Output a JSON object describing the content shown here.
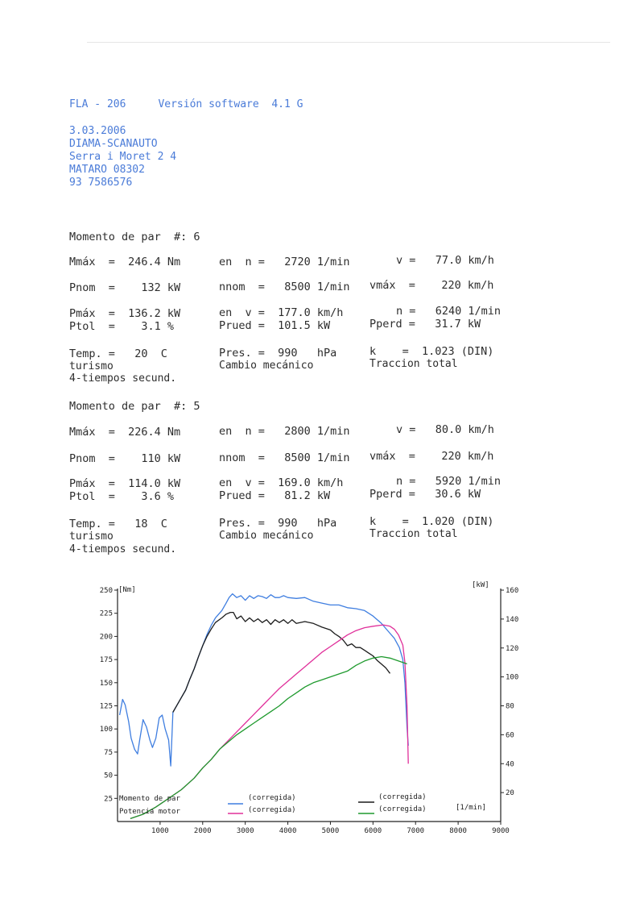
{
  "header": {
    "device": "FLA - 206",
    "software": "Versión software  4.1 G",
    "date": "3.03.2006",
    "company": "DIAMA-SCANAUTO",
    "address": "Serra i Moret 2 4",
    "city": "MATARO 08302",
    "phone": "93 7586576"
  },
  "tests": [
    {
      "title": "Momento de par  #: 6",
      "mmax": "Mmáx  =  246.4 Nm",
      "mmax_n": "en  n =   2720 1/min",
      "mmax_v": "v =   77.0 km/h",
      "pnom": "Pnom  =    132 kW",
      "nnom": "nnom  =   8500 1/min",
      "vmax": "vmáx  =    220 km/h",
      "pmax": "Pmáx  =  136.2 kW",
      "pmax_v": "en  v =  177.0 km/h",
      "pmax_n": "n =   6240 1/min",
      "ptol": "Ptol  =    3.1 %",
      "prued": "Prued =  101.5 kW",
      "pperd": "Pperd =   31.7 kW",
      "temp": "Temp. =   20  C",
      "pres": "Pres. =  990   hPa",
      "k": "k    =  1.023 (DIN)",
      "type": "turismo",
      "gearbox": "Cambio mecánico",
      "traction": "Traccion total",
      "engine": "4-tiempos secund."
    },
    {
      "title": "Momento de par  #: 5",
      "mmax": "Mmáx  =  226.4 Nm",
      "mmax_n": "en  n =   2800 1/min",
      "mmax_v": "v =   80.0 km/h",
      "pnom": "Pnom  =    110 kW",
      "nnom": "nnom  =   8500 1/min",
      "vmax": "vmáx  =    220 km/h",
      "pmax": "Pmáx  =  114.0 kW",
      "pmax_v": "en  v =  169.0 km/h",
      "pmax_n": "n =   5920 1/min",
      "ptol": "Ptol  =    3.6 %",
      "prued": "Prued =   81.2 kW",
      "pperd": "Pperd =   30.6 kW",
      "temp": "Temp. =   18  C",
      "pres": "Pres. =  990   hPa",
      "k": "k    =  1.020 (DIN)",
      "type": "turismo",
      "gearbox": "Cambio mecánico",
      "traction": "Traccion total",
      "engine": "4-tiempos secund."
    }
  ],
  "chart_data": {
    "type": "line",
    "xlabel": "[1/min]",
    "ylabel_left": "[Nm]",
    "ylabel_right": "[kW]",
    "xlim": [
      0,
      9000
    ],
    "ylim_left": [
      0,
      250
    ],
    "ylim_right": [
      0,
      160
    ],
    "x_ticks": [
      "1000",
      "2000",
      "3000",
      "4000",
      "5000",
      "6000",
      "7000",
      "8000",
      "9000"
    ],
    "y_left_ticks": [
      "25",
      "50",
      "75",
      "100",
      "125",
      "150",
      "175",
      "200",
      "225",
      "250"
    ],
    "y_right_ticks": [
      "20",
      "40",
      "60",
      "80",
      "100",
      "120",
      "140",
      "160"
    ],
    "legend": {
      "torque_label": "Momento de par",
      "power_label": "Potencia motor",
      "corrected": "(corregida)"
    },
    "series": [
      {
        "color": "#3f7ee0",
        "axis": "left",
        "points": [
          [
            50,
            115
          ],
          [
            120,
            132
          ],
          [
            180,
            126
          ],
          [
            260,
            108
          ],
          [
            320,
            90
          ],
          [
            400,
            78
          ],
          [
            470,
            73
          ],
          [
            520,
            88
          ],
          [
            600,
            110
          ],
          [
            680,
            102
          ],
          [
            760,
            88
          ],
          [
            820,
            80
          ],
          [
            900,
            90
          ],
          [
            980,
            112
          ],
          [
            1050,
            115
          ],
          [
            1120,
            100
          ],
          [
            1200,
            88
          ],
          [
            1250,
            60
          ],
          [
            1300,
            118
          ],
          [
            1400,
            126
          ],
          [
            1500,
            134
          ],
          [
            1600,
            142
          ],
          [
            1700,
            154
          ],
          [
            1800,
            165
          ],
          [
            1900,
            178
          ],
          [
            2000,
            190
          ],
          [
            2100,
            202
          ],
          [
            2200,
            212
          ],
          [
            2300,
            220
          ],
          [
            2450,
            228
          ],
          [
            2550,
            236
          ],
          [
            2620,
            242
          ],
          [
            2700,
            246
          ],
          [
            2800,
            242
          ],
          [
            2900,
            244
          ],
          [
            3000,
            239
          ],
          [
            3100,
            244
          ],
          [
            3200,
            241
          ],
          [
            3300,
            244
          ],
          [
            3400,
            243
          ],
          [
            3500,
            241
          ],
          [
            3600,
            245
          ],
          [
            3700,
            242
          ],
          [
            3800,
            242
          ],
          [
            3900,
            244
          ],
          [
            4000,
            242
          ],
          [
            4200,
            241
          ],
          [
            4400,
            242
          ],
          [
            4600,
            238
          ],
          [
            4800,
            236
          ],
          [
            5000,
            234
          ],
          [
            5200,
            234
          ],
          [
            5400,
            231
          ],
          [
            5600,
            230
          ],
          [
            5800,
            228
          ],
          [
            6000,
            222
          ],
          [
            6200,
            214
          ],
          [
            6350,
            206
          ],
          [
            6500,
            198
          ],
          [
            6620,
            188
          ],
          [
            6700,
            175
          ],
          [
            6750,
            150
          ],
          [
            6800,
            102
          ],
          [
            6830,
            82
          ]
        ]
      },
      {
        "color": "#1c1c1c",
        "axis": "left",
        "points": [
          [
            1300,
            118
          ],
          [
            1400,
            126
          ],
          [
            1500,
            134
          ],
          [
            1600,
            142
          ],
          [
            1700,
            154
          ],
          [
            1800,
            165
          ],
          [
            1900,
            178
          ],
          [
            2000,
            190
          ],
          [
            2100,
            200
          ],
          [
            2200,
            208
          ],
          [
            2300,
            215
          ],
          [
            2450,
            220
          ],
          [
            2550,
            224
          ],
          [
            2650,
            226
          ],
          [
            2720,
            226
          ],
          [
            2800,
            219
          ],
          [
            2900,
            222
          ],
          [
            3000,
            216
          ],
          [
            3100,
            220
          ],
          [
            3200,
            216
          ],
          [
            3300,
            219
          ],
          [
            3400,
            215
          ],
          [
            3500,
            218
          ],
          [
            3600,
            213
          ],
          [
            3700,
            218
          ],
          [
            3800,
            215
          ],
          [
            3900,
            218
          ],
          [
            4000,
            214
          ],
          [
            4100,
            218
          ],
          [
            4200,
            214
          ],
          [
            4400,
            216
          ],
          [
            4600,
            214
          ],
          [
            4800,
            210
          ],
          [
            5000,
            207
          ],
          [
            5100,
            203
          ],
          [
            5200,
            200
          ],
          [
            5300,
            196
          ],
          [
            5400,
            190
          ],
          [
            5500,
            192
          ],
          [
            5600,
            188
          ],
          [
            5700,
            188
          ],
          [
            5800,
            185
          ],
          [
            5900,
            182
          ],
          [
            6000,
            179
          ],
          [
            6100,
            174
          ],
          [
            6200,
            170
          ],
          [
            6300,
            166
          ],
          [
            6400,
            160
          ]
        ]
      },
      {
        "color": "#e0309a",
        "axis": "right",
        "points": [
          [
            300,
            2
          ],
          [
            600,
            5
          ],
          [
            900,
            10
          ],
          [
            1200,
            16
          ],
          [
            1500,
            22
          ],
          [
            1800,
            30
          ],
          [
            2000,
            37
          ],
          [
            2200,
            43
          ],
          [
            2400,
            50
          ],
          [
            2600,
            56
          ],
          [
            2800,
            62
          ],
          [
            3000,
            68
          ],
          [
            3200,
            74
          ],
          [
            3400,
            80
          ],
          [
            3600,
            86
          ],
          [
            3800,
            92
          ],
          [
            4000,
            97
          ],
          [
            4200,
            102
          ],
          [
            4400,
            107
          ],
          [
            4600,
            112
          ],
          [
            4800,
            117
          ],
          [
            5000,
            121
          ],
          [
            5200,
            125
          ],
          [
            5400,
            129
          ],
          [
            5600,
            132
          ],
          [
            5800,
            134
          ],
          [
            6000,
            135
          ],
          [
            6240,
            136
          ],
          [
            6400,
            135
          ],
          [
            6500,
            133
          ],
          [
            6600,
            129
          ],
          [
            6700,
            122
          ],
          [
            6750,
            110
          ],
          [
            6800,
            80
          ],
          [
            6830,
            40
          ]
        ]
      },
      {
        "color": "#1f9a2e",
        "axis": "right",
        "points": [
          [
            300,
            2
          ],
          [
            600,
            5
          ],
          [
            900,
            10
          ],
          [
            1200,
            16
          ],
          [
            1500,
            22
          ],
          [
            1800,
            30
          ],
          [
            2000,
            37
          ],
          [
            2200,
            43
          ],
          [
            2400,
            50
          ],
          [
            2600,
            55
          ],
          [
            2800,
            60
          ],
          [
            3000,
            64
          ],
          [
            3200,
            68
          ],
          [
            3400,
            72
          ],
          [
            3600,
            76
          ],
          [
            3800,
            80
          ],
          [
            4000,
            85
          ],
          [
            4200,
            89
          ],
          [
            4400,
            93
          ],
          [
            4600,
            96
          ],
          [
            4800,
            98
          ],
          [
            5000,
            100
          ],
          [
            5200,
            102
          ],
          [
            5400,
            104
          ],
          [
            5600,
            108
          ],
          [
            5800,
            111
          ],
          [
            6000,
            113
          ],
          [
            6200,
            114
          ],
          [
            6400,
            113
          ],
          [
            6600,
            111
          ],
          [
            6800,
            109
          ]
        ]
      }
    ]
  }
}
